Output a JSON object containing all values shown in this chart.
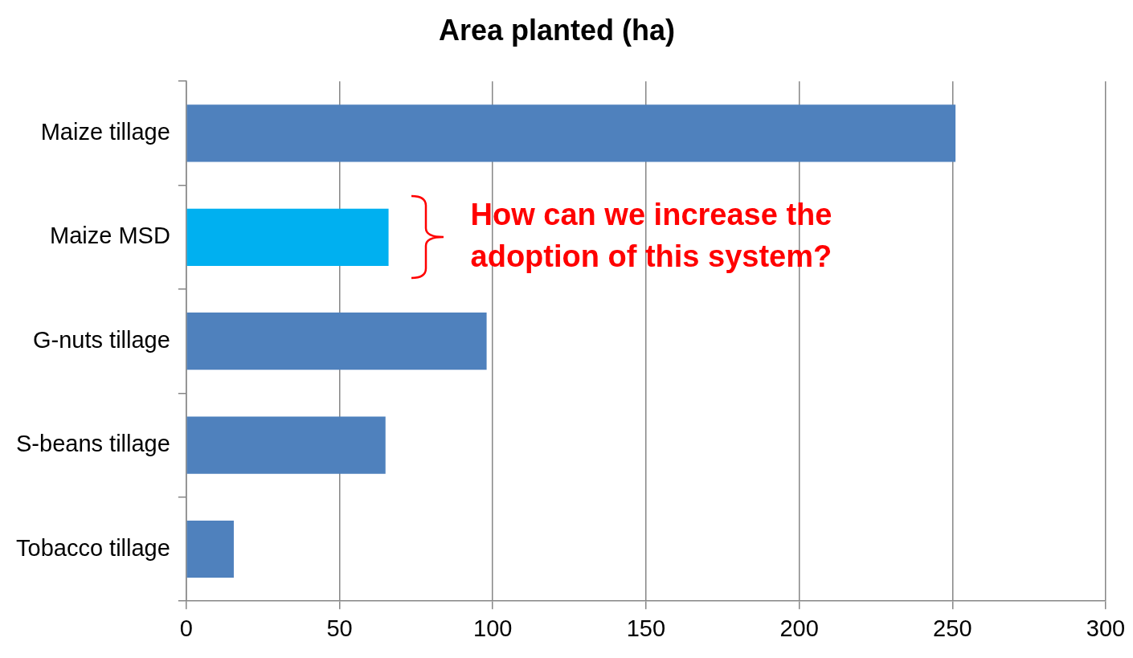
{
  "chart_data": {
    "type": "bar",
    "orientation": "horizontal",
    "title": "Area planted (ha)",
    "categories": [
      "Maize tillage",
      "Maize MSD",
      "G-nuts tillage",
      "S-beans tillage",
      "Tobacco tillage"
    ],
    "values": [
      251,
      66,
      98,
      65,
      15.5
    ],
    "colors": [
      "#4f81bd",
      "#00b0f0",
      "#4f81bd",
      "#4f81bd",
      "#4f81bd"
    ],
    "xlim": [
      0,
      300
    ],
    "xticks": [
      0,
      50,
      100,
      150,
      200,
      250,
      300
    ],
    "grid": "x",
    "legend": false,
    "annotations": [
      {
        "text": "How can we increase the adoption of this system?",
        "x": 66,
        "y": "Maize MSD"
      }
    ]
  }
}
